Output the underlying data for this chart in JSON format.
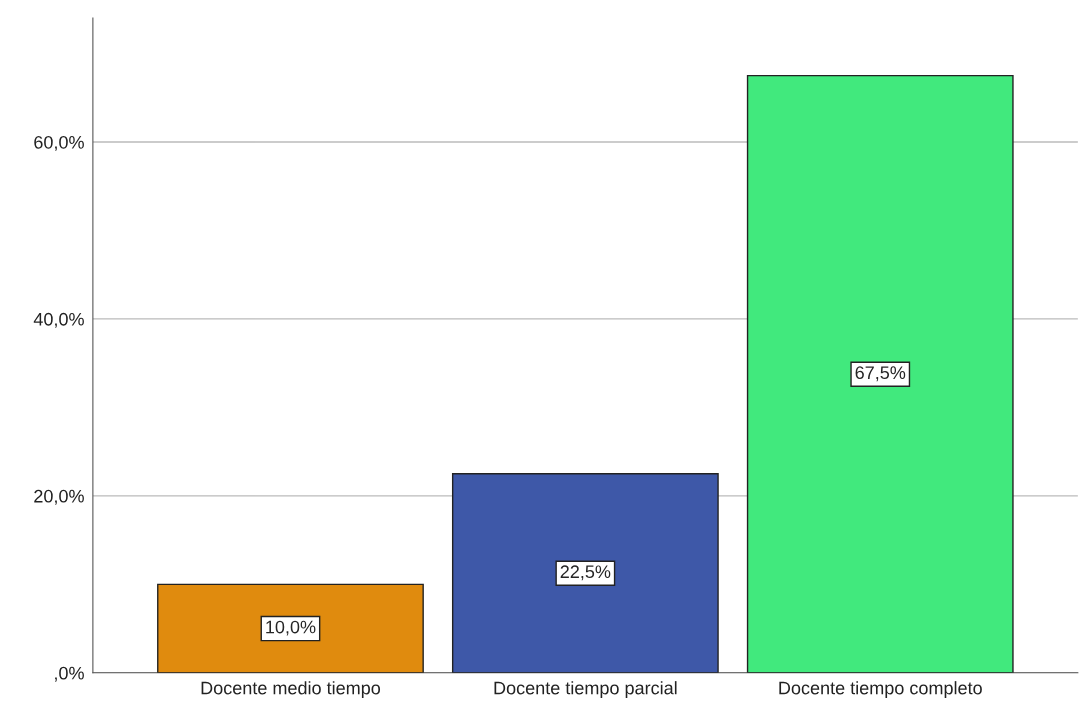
{
  "chart_data": {
    "type": "bar",
    "categories": [
      "Docente medio tiempo",
      "Docente tiempo parcial",
      "Docente tiempo completo"
    ],
    "values": [
      10.0,
      22.5,
      67.5
    ],
    "colors": [
      "#e08b0e",
      "#3e58a8",
      "#41e97d"
    ],
    "value_labels": [
      "10,0%",
      "22,5%",
      "67,5%"
    ],
    "ylim": [
      0,
      74
    ],
    "yticks": [
      {
        "value": 0,
        "label": ",0%"
      },
      {
        "value": 20,
        "label": "20,0%"
      },
      {
        "value": 40,
        "label": "40,0%"
      },
      {
        "value": 60,
        "label": "60,0%"
      }
    ],
    "grid": "y"
  }
}
